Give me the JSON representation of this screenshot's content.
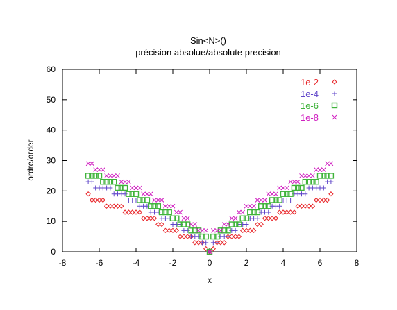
{
  "chart_data": {
    "type": "scatter",
    "title": "Sin<N>()",
    "subtitle": "précision absolue/absolute precision",
    "xlabel": "x",
    "ylabel": "ordre/order",
    "xlim": [
      -8,
      8
    ],
    "ylim": [
      0,
      60
    ],
    "xticks": [
      -8,
      -6,
      -4,
      -2,
      0,
      2,
      4,
      6,
      8
    ],
    "yticks": [
      0,
      10,
      20,
      30,
      40,
      50,
      60
    ],
    "xtick_labels": [
      "-8",
      "-6",
      "-4",
      "-2",
      "0",
      "2",
      "4",
      "6",
      "8"
    ],
    "ytick_labels": [
      "0",
      "10",
      "20",
      "30",
      "40",
      "50",
      "60"
    ],
    "grid": false,
    "legend_position": "top-right",
    "series": [
      {
        "name": "1e-2",
        "marker": "diamond",
        "color": "#e8262a",
        "points": [
          [
            0,
            0
          ],
          [
            0.2,
            1
          ],
          [
            -0.2,
            1
          ],
          [
            0.4,
            3
          ],
          [
            -0.4,
            3
          ],
          [
            0.6,
            3
          ],
          [
            -0.6,
            3
          ],
          [
            0.8,
            3
          ],
          [
            -0.8,
            3
          ],
          [
            1.0,
            5
          ],
          [
            -1.0,
            5
          ],
          [
            1.2,
            5
          ],
          [
            -1.2,
            5
          ],
          [
            1.4,
            5
          ],
          [
            -1.4,
            5
          ],
          [
            1.6,
            5
          ],
          [
            -1.6,
            5
          ],
          [
            1.8,
            7
          ],
          [
            -1.8,
            7
          ],
          [
            2.0,
            7
          ],
          [
            -2.0,
            7
          ],
          [
            2.2,
            7
          ],
          [
            -2.2,
            7
          ],
          [
            2.4,
            7
          ],
          [
            -2.4,
            7
          ],
          [
            2.6,
            9
          ],
          [
            -2.6,
            9
          ],
          [
            2.8,
            9
          ],
          [
            -2.8,
            9
          ],
          [
            3.0,
            11
          ],
          [
            -3.0,
            11
          ],
          [
            3.2,
            11
          ],
          [
            -3.2,
            11
          ],
          [
            3.4,
            11
          ],
          [
            -3.4,
            11
          ],
          [
            3.6,
            11
          ],
          [
            -3.6,
            11
          ],
          [
            3.8,
            13
          ],
          [
            -3.8,
            13
          ],
          [
            4.0,
            13
          ],
          [
            -4.0,
            13
          ],
          [
            4.2,
            13
          ],
          [
            -4.2,
            13
          ],
          [
            4.4,
            13
          ],
          [
            -4.4,
            13
          ],
          [
            4.6,
            13
          ],
          [
            -4.6,
            13
          ],
          [
            4.8,
            15
          ],
          [
            -4.8,
            15
          ],
          [
            5.0,
            15
          ],
          [
            -5.0,
            15
          ],
          [
            5.2,
            15
          ],
          [
            -5.2,
            15
          ],
          [
            5.4,
            15
          ],
          [
            -5.4,
            15
          ],
          [
            5.6,
            15
          ],
          [
            -5.6,
            15
          ],
          [
            5.8,
            17
          ],
          [
            -5.8,
            17
          ],
          [
            6.0,
            17
          ],
          [
            -6.0,
            17
          ],
          [
            6.2,
            17
          ],
          [
            -6.2,
            17
          ],
          [
            6.4,
            17
          ],
          [
            -6.4,
            17
          ],
          [
            6.6,
            19
          ],
          [
            -6.6,
            19
          ]
        ]
      },
      {
        "name": "1e-4",
        "marker": "plus",
        "color": "#5f45c9",
        "points": [
          [
            0,
            0
          ],
          [
            0.2,
            3
          ],
          [
            -0.2,
            3
          ],
          [
            0.4,
            3
          ],
          [
            -0.4,
            3
          ],
          [
            0.6,
            5
          ],
          [
            -0.6,
            5
          ],
          [
            0.8,
            5
          ],
          [
            -0.8,
            5
          ],
          [
            1.0,
            5
          ],
          [
            -1.0,
            5
          ],
          [
            1.2,
            7
          ],
          [
            -1.2,
            7
          ],
          [
            1.4,
            7
          ],
          [
            -1.4,
            7
          ],
          [
            1.6,
            9
          ],
          [
            -1.6,
            9
          ],
          [
            1.8,
            9
          ],
          [
            -1.8,
            9
          ],
          [
            2.0,
            9
          ],
          [
            -2.0,
            9
          ],
          [
            2.2,
            11
          ],
          [
            -2.2,
            11
          ],
          [
            2.4,
            11
          ],
          [
            -2.4,
            11
          ],
          [
            2.6,
            11
          ],
          [
            -2.6,
            11
          ],
          [
            2.8,
            13
          ],
          [
            -2.8,
            13
          ],
          [
            3.0,
            13
          ],
          [
            -3.0,
            13
          ],
          [
            3.2,
            13
          ],
          [
            -3.2,
            13
          ],
          [
            3.4,
            15
          ],
          [
            -3.4,
            15
          ],
          [
            3.6,
            15
          ],
          [
            -3.6,
            15
          ],
          [
            3.8,
            15
          ],
          [
            -3.8,
            15
          ],
          [
            4.0,
            17
          ],
          [
            -4.0,
            17
          ],
          [
            4.2,
            17
          ],
          [
            -4.2,
            17
          ],
          [
            4.4,
            17
          ],
          [
            -4.4,
            17
          ],
          [
            4.6,
            19
          ],
          [
            -4.6,
            19
          ],
          [
            4.8,
            19
          ],
          [
            -4.8,
            19
          ],
          [
            5.0,
            19
          ],
          [
            -5.0,
            19
          ],
          [
            5.2,
            19
          ],
          [
            -5.2,
            19
          ],
          [
            5.4,
            21
          ],
          [
            -5.4,
            21
          ],
          [
            5.6,
            21
          ],
          [
            -5.6,
            21
          ],
          [
            5.8,
            21
          ],
          [
            -5.8,
            21
          ],
          [
            6.0,
            21
          ],
          [
            -6.0,
            21
          ],
          [
            6.2,
            21
          ],
          [
            -6.2,
            21
          ],
          [
            6.4,
            23
          ],
          [
            -6.4,
            23
          ],
          [
            6.6,
            23
          ],
          [
            -6.6,
            23
          ]
        ]
      },
      {
        "name": "1e-6",
        "marker": "square",
        "color": "#3fb33a",
        "points": [
          [
            0,
            0
          ],
          [
            0.2,
            5
          ],
          [
            -0.2,
            5
          ],
          [
            0.4,
            5
          ],
          [
            -0.4,
            5
          ],
          [
            0.6,
            7
          ],
          [
            -0.6,
            7
          ],
          [
            0.8,
            7
          ],
          [
            -0.8,
            7
          ],
          [
            1.0,
            7
          ],
          [
            -1.0,
            7
          ],
          [
            1.2,
            9
          ],
          [
            -1.2,
            9
          ],
          [
            1.4,
            9
          ],
          [
            -1.4,
            9
          ],
          [
            1.6,
            9
          ],
          [
            -1.6,
            9
          ],
          [
            1.8,
            11
          ],
          [
            -1.8,
            11
          ],
          [
            2.0,
            11
          ],
          [
            -2.0,
            11
          ],
          [
            2.2,
            13
          ],
          [
            -2.2,
            13
          ],
          [
            2.4,
            13
          ],
          [
            -2.4,
            13
          ],
          [
            2.6,
            13
          ],
          [
            -2.6,
            13
          ],
          [
            2.8,
            15
          ],
          [
            -2.8,
            15
          ],
          [
            3.0,
            15
          ],
          [
            -3.0,
            15
          ],
          [
            3.2,
            15
          ],
          [
            -3.2,
            15
          ],
          [
            3.4,
            17
          ],
          [
            -3.4,
            17
          ],
          [
            3.6,
            17
          ],
          [
            -3.6,
            17
          ],
          [
            3.8,
            17
          ],
          [
            -3.8,
            17
          ],
          [
            4.0,
            19
          ],
          [
            -4.0,
            19
          ],
          [
            4.2,
            19
          ],
          [
            -4.2,
            19
          ],
          [
            4.4,
            19
          ],
          [
            -4.4,
            19
          ],
          [
            4.6,
            21
          ],
          [
            -4.6,
            21
          ],
          [
            4.8,
            21
          ],
          [
            -4.8,
            21
          ],
          [
            5.0,
            21
          ],
          [
            -5.0,
            21
          ],
          [
            5.2,
            23
          ],
          [
            -5.2,
            23
          ],
          [
            5.4,
            23
          ],
          [
            -5.4,
            23
          ],
          [
            5.6,
            23
          ],
          [
            -5.6,
            23
          ],
          [
            5.8,
            23
          ],
          [
            -5.8,
            23
          ],
          [
            6.0,
            25
          ],
          [
            -6.0,
            25
          ],
          [
            6.2,
            25
          ],
          [
            -6.2,
            25
          ],
          [
            6.4,
            25
          ],
          [
            -6.4,
            25
          ],
          [
            6.6,
            25
          ],
          [
            -6.6,
            25
          ]
        ]
      },
      {
        "name": "1e-8",
        "marker": "cross",
        "color": "#d020c0",
        "points": [
          [
            0,
            0
          ],
          [
            0.2,
            7
          ],
          [
            -0.2,
            7
          ],
          [
            0.4,
            7
          ],
          [
            -0.4,
            7
          ],
          [
            0.6,
            7
          ],
          [
            -0.6,
            7
          ],
          [
            0.8,
            9
          ],
          [
            -0.8,
            9
          ],
          [
            1.0,
            9
          ],
          [
            -1.0,
            9
          ],
          [
            1.2,
            11
          ],
          [
            -1.2,
            11
          ],
          [
            1.4,
            11
          ],
          [
            -1.4,
            11
          ],
          [
            1.6,
            13
          ],
          [
            -1.6,
            13
          ],
          [
            1.8,
            13
          ],
          [
            -1.8,
            13
          ],
          [
            2.0,
            15
          ],
          [
            -2.0,
            15
          ],
          [
            2.2,
            15
          ],
          [
            -2.2,
            15
          ],
          [
            2.4,
            15
          ],
          [
            -2.4,
            15
          ],
          [
            2.6,
            17
          ],
          [
            -2.6,
            17
          ],
          [
            2.8,
            17
          ],
          [
            -2.8,
            17
          ],
          [
            3.0,
            17
          ],
          [
            -3.0,
            17
          ],
          [
            3.2,
            19
          ],
          [
            -3.2,
            19
          ],
          [
            3.4,
            19
          ],
          [
            -3.4,
            19
          ],
          [
            3.6,
            19
          ],
          [
            -3.6,
            19
          ],
          [
            3.8,
            21
          ],
          [
            -3.8,
            21
          ],
          [
            4.0,
            21
          ],
          [
            -4.0,
            21
          ],
          [
            4.2,
            21
          ],
          [
            -4.2,
            21
          ],
          [
            4.4,
            23
          ],
          [
            -4.4,
            23
          ],
          [
            4.6,
            23
          ],
          [
            -4.6,
            23
          ],
          [
            4.8,
            23
          ],
          [
            -4.8,
            23
          ],
          [
            5.0,
            25
          ],
          [
            -5.0,
            25
          ],
          [
            5.2,
            25
          ],
          [
            -5.2,
            25
          ],
          [
            5.4,
            25
          ],
          [
            -5.4,
            25
          ],
          [
            5.6,
            25
          ],
          [
            -5.6,
            25
          ],
          [
            5.8,
            27
          ],
          [
            -5.8,
            27
          ],
          [
            6.0,
            27
          ],
          [
            -6.0,
            27
          ],
          [
            6.2,
            27
          ],
          [
            -6.2,
            27
          ],
          [
            6.4,
            29
          ],
          [
            -6.4,
            29
          ],
          [
            6.6,
            29
          ],
          [
            -6.6,
            29
          ]
        ]
      }
    ]
  }
}
